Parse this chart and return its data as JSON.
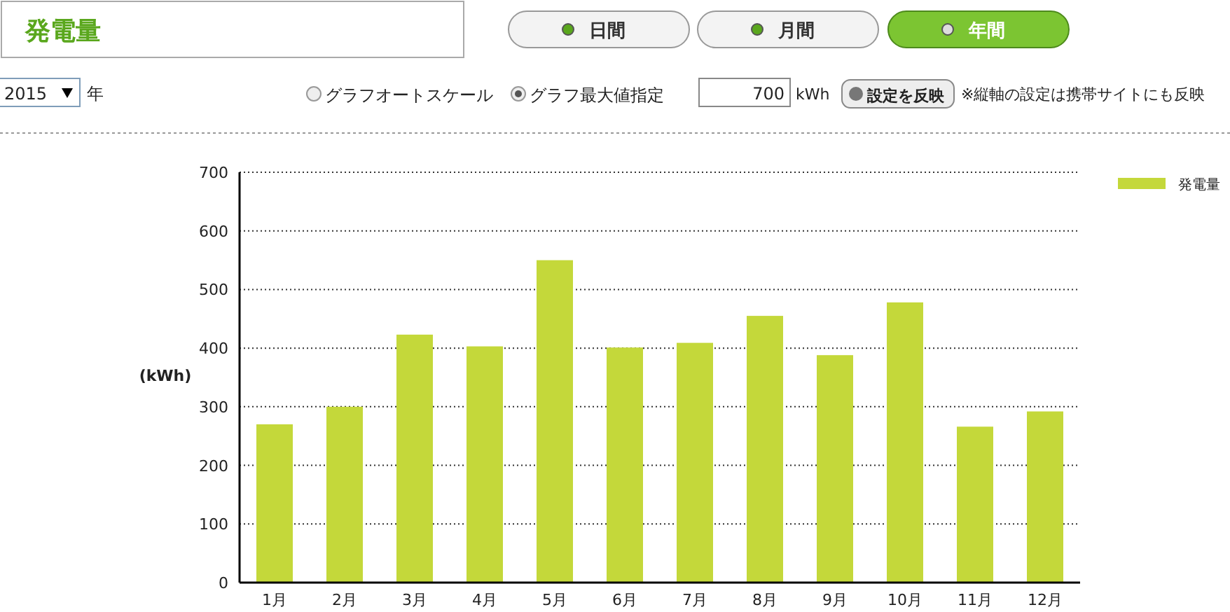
{
  "chart_data": {
    "type": "bar",
    "title": "発電量",
    "ylabel": "(kWh)",
    "categories": [
      "1月",
      "2月",
      "3月",
      "4月",
      "5月",
      "6月",
      "7月",
      "8月",
      "9月",
      "10月",
      "11月",
      "12月"
    ],
    "series": [
      {
        "name": "発電量",
        "color": "#c4d83a",
        "values": [
          270,
          300,
          423,
          403,
          550,
          401,
          409,
          455,
          388,
          478,
          266,
          292
        ]
      }
    ],
    "ylim": [
      0,
      700
    ],
    "yticks": [
      0,
      100,
      200,
      300,
      400,
      500,
      600,
      700
    ],
    "grid": "y",
    "legend": "top right",
    "annotations": [
      "日間",
      "月間",
      "年間",
      "2015",
      "年",
      "グラフオートスケール",
      "グラフ最大値指定",
      "700",
      "kWh",
      "設定を反映",
      "※縦軸の設定は携帯サイトにも反映"
    ]
  }
}
